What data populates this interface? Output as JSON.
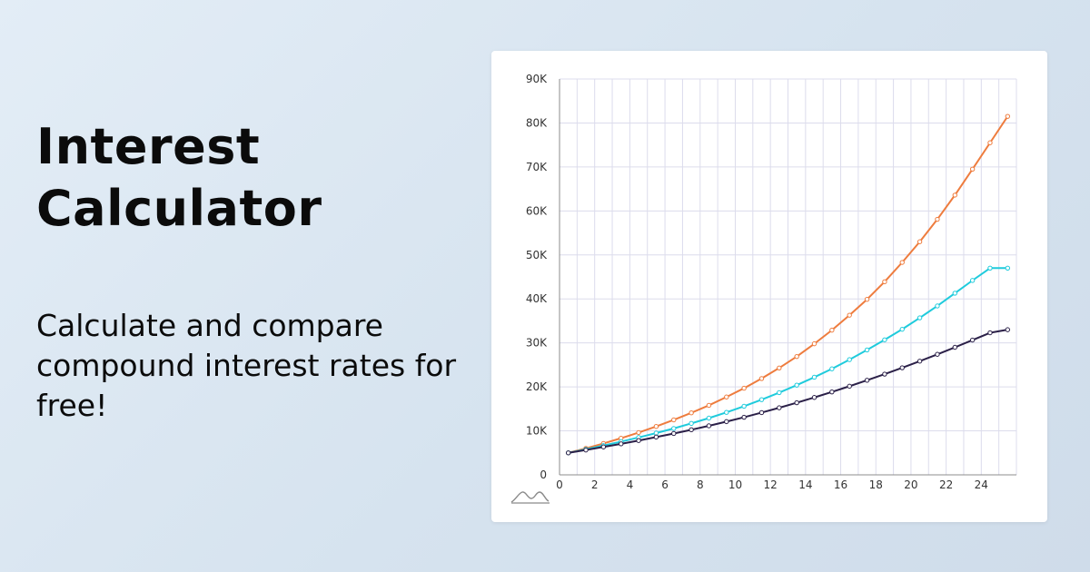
{
  "hero": {
    "title": "Interest Calculator",
    "subtitle": "Calculate and compare compound interest rates for free!"
  },
  "logo_icon": "mountain-wave-icon",
  "chart_data": {
    "type": "line",
    "title": "",
    "xlabel": "",
    "ylabel": "",
    "xlim": [
      0,
      26
    ],
    "ylim": [
      0,
      90000
    ],
    "x_ticks": [
      0,
      2,
      4,
      6,
      8,
      10,
      12,
      14,
      16,
      18,
      20,
      22,
      24
    ],
    "x_tick_labels": [
      "0",
      "2",
      "4",
      "6",
      "8",
      "10",
      "12",
      "14",
      "16",
      "18",
      "20",
      "22",
      "24"
    ],
    "y_ticks": [
      0,
      10000,
      20000,
      30000,
      40000,
      50000,
      60000,
      70000,
      80000,
      90000
    ],
    "y_tick_labels": [
      "0",
      "10K",
      "20K",
      "30K",
      "40K",
      "50K",
      "60K",
      "70K",
      "80K",
      "90K"
    ],
    "grid": true,
    "x": [
      0.5,
      1.5,
      2.5,
      3.5,
      4.5,
      5.5,
      6.5,
      7.5,
      8.5,
      9.5,
      10.5,
      11.5,
      12.5,
      13.5,
      14.5,
      15.5,
      16.5,
      17.5,
      18.5,
      19.5,
      20.5,
      21.5,
      22.5,
      23.5,
      24.5,
      25.5
    ],
    "series": [
      {
        "color": "#ee7c3e",
        "values": [
          5000,
          6030,
          7140,
          8330,
          9620,
          11000,
          12500,
          14100,
          15800,
          17700,
          19700,
          21900,
          24300,
          26900,
          29800,
          32900,
          36300,
          39900,
          43900,
          48300,
          53000,
          58100,
          63600,
          69500,
          75500,
          81500
        ]
      },
      {
        "color": "#1fcbdc",
        "values": [
          5000,
          5800,
          6650,
          7550,
          8500,
          9500,
          10550,
          11700,
          12900,
          14200,
          15600,
          17100,
          18700,
          20400,
          22200,
          24100,
          26200,
          28400,
          30700,
          33100,
          35700,
          38400,
          41300,
          44200,
          47000,
          47000
        ]
      },
      {
        "color": "#2b2048",
        "values": [
          5000,
          5650,
          6350,
          7050,
          7800,
          8600,
          9400,
          10250,
          11150,
          12100,
          13100,
          14150,
          15250,
          16400,
          17600,
          18850,
          20150,
          21500,
          22900,
          24350,
          25850,
          27400,
          29000,
          30650,
          32300,
          33000
        ]
      }
    ]
  }
}
